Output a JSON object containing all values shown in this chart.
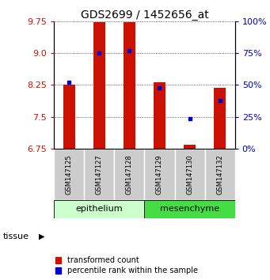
{
  "title": "GDS2699 / 1452656_at",
  "samples": [
    "GSM147125",
    "GSM147127",
    "GSM147128",
    "GSM147129",
    "GSM147130",
    "GSM147132"
  ],
  "red_values": [
    8.25,
    9.73,
    9.73,
    8.32,
    6.85,
    8.18
  ],
  "blue_values": [
    8.32,
    8.99,
    9.06,
    8.19,
    7.45,
    7.88
  ],
  "ylim_left": [
    6.75,
    9.75
  ],
  "yticks_left": [
    6.75,
    7.5,
    8.25,
    9.0,
    9.75
  ],
  "yticks_right_pct": [
    0,
    25,
    50,
    75,
    100
  ],
  "bar_bottom": 6.75,
  "groups": [
    {
      "label": "epithelium",
      "indices": [
        0,
        1,
        2
      ],
      "color": "#ccffcc"
    },
    {
      "label": "mesenchyme",
      "indices": [
        3,
        4,
        5
      ],
      "color": "#44dd44"
    }
  ],
  "tissue_label": "tissue",
  "legend_red": "transformed count",
  "legend_blue": "percentile rank within the sample",
  "red_color": "#cc1100",
  "blue_color": "#0000cc",
  "bar_width": 0.4,
  "sample_box_color": "#cccccc",
  "title_fontsize": 10,
  "tick_fontsize": 8,
  "sample_fontsize": 6,
  "legend_fontsize": 7,
  "tissue_fontsize": 8,
  "group_fontsize": 8
}
